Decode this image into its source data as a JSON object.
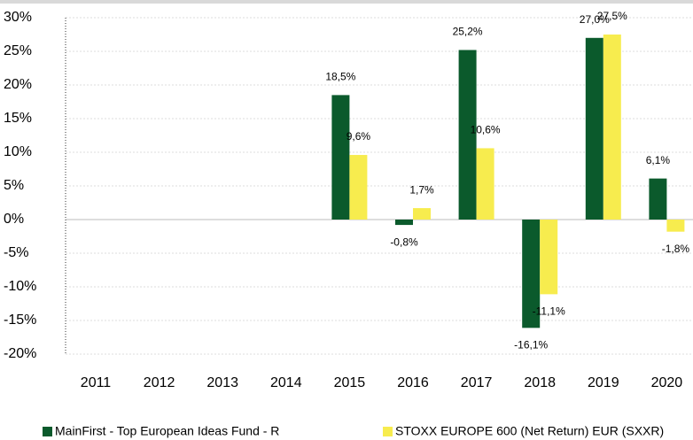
{
  "chart_data": {
    "type": "bar",
    "categories": [
      "2011",
      "2012",
      "2013",
      "2014",
      "2015",
      "2016",
      "2017",
      "2018",
      "2019",
      "2020"
    ],
    "series": [
      {
        "name": "MainFirst - Top European Ideas Fund - R",
        "color": "#0b5a2c",
        "values": [
          null,
          null,
          null,
          null,
          18.5,
          -0.8,
          25.2,
          -16.1,
          27.0,
          6.1
        ],
        "value_labels": [
          null,
          null,
          null,
          null,
          "18,5%",
          "-0,8%",
          "25,2%",
          "-16,1%",
          "27,0%",
          "6,1%"
        ]
      },
      {
        "name": "STOXX EUROPE 600 (Net Return) EUR (SXXR)",
        "color": "#f7ec4e",
        "values": [
          null,
          null,
          null,
          null,
          9.6,
          1.7,
          10.6,
          -11.1,
          27.5,
          -1.8
        ],
        "value_labels": [
          null,
          null,
          null,
          null,
          "9,6%",
          "1,7%",
          "10,6%",
          "-11,1%",
          "27,5%",
          "-1,8%"
        ]
      }
    ],
    "ylim": [
      -20,
      30
    ],
    "yticks": [
      {
        "value": 30,
        "label": "30%"
      },
      {
        "value": 25,
        "label": "25%"
      },
      {
        "value": 20,
        "label": "20%"
      },
      {
        "value": 15,
        "label": "15%"
      },
      {
        "value": 10,
        "label": "10%"
      },
      {
        "value": 5,
        "label": "5%"
      },
      {
        "value": 0,
        "label": "0%"
      },
      {
        "value": -5,
        "label": "-5%"
      },
      {
        "value": -10,
        "label": "-10%"
      },
      {
        "value": -15,
        "label": "-15%"
      },
      {
        "value": -20,
        "label": "-20%"
      }
    ],
    "grid": true,
    "legend": "bottom"
  }
}
